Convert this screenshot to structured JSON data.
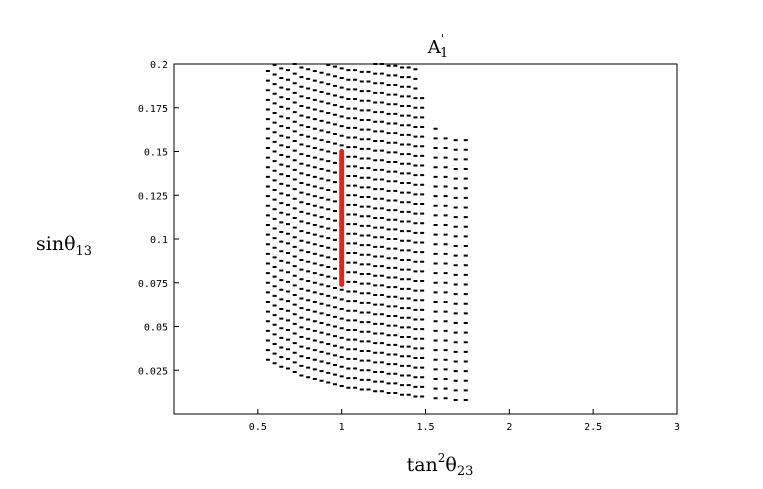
{
  "chart_data": {
    "type": "scatter",
    "title": "A1'",
    "title_parts": {
      "base": "A",
      "sub": "1",
      "sup": "'"
    },
    "xlabel": "tan²θ23",
    "xlabel_parts": {
      "fn": "tan",
      "sup": "2",
      "sym": "θ",
      "sub": "23"
    },
    "ylabel": "sinθ13",
    "ylabel_parts": {
      "fn": "sin",
      "sym": "θ",
      "sub": "13"
    },
    "xlim": [
      0,
      3
    ],
    "ylim": [
      0,
      0.2
    ],
    "x_ticks": [
      0.5,
      1,
      1.5,
      2,
      2.5,
      3
    ],
    "x_tick_labels": [
      "0.5",
      "1",
      "1.5",
      "2",
      "2.5",
      "3"
    ],
    "y_ticks": [
      0.025,
      0.05,
      0.075,
      0.1,
      0.125,
      0.15,
      0.175,
      0.2
    ],
    "y_tick_labels": [
      "0.025",
      "0.05",
      "0.075",
      "0.1",
      "0.125",
      "0.15",
      "0.175",
      "0.2"
    ],
    "grid": false,
    "series": [
      {
        "color": "#000000",
        "marker": "dot",
        "columns": [
          {
            "x": 0.56,
            "ymin": 0.031,
            "ymax": 0.2
          },
          {
            "x": 0.6,
            "ymin": 0.029,
            "ymax": 0.2
          },
          {
            "x": 0.64,
            "ymin": 0.027,
            "ymax": 0.2
          },
          {
            "x": 0.68,
            "ymin": 0.026,
            "ymax": 0.2
          },
          {
            "x": 0.72,
            "ymin": 0.024,
            "ymax": 0.2
          },
          {
            "x": 0.76,
            "ymin": 0.022,
            "ymax": 0.2
          },
          {
            "x": 0.8,
            "ymin": 0.021,
            "ymax": 0.2
          },
          {
            "x": 0.84,
            "ymin": 0.02,
            "ymax": 0.2
          },
          {
            "x": 0.88,
            "ymin": 0.019,
            "ymax": 0.2
          },
          {
            "x": 0.92,
            "ymin": 0.018,
            "ymax": 0.2
          },
          {
            "x": 0.96,
            "ymin": 0.017,
            "ymax": 0.2
          },
          {
            "x": 1.0,
            "ymin": 0.016,
            "ymax": 0.2
          },
          {
            "x": 1.04,
            "ymin": 0.015,
            "ymax": 0.2
          },
          {
            "x": 1.08,
            "ymin": 0.015,
            "ymax": 0.2
          },
          {
            "x": 1.12,
            "ymin": 0.014,
            "ymax": 0.2
          },
          {
            "x": 1.16,
            "ymin": 0.014,
            "ymax": 0.2
          },
          {
            "x": 1.2,
            "ymin": 0.013,
            "ymax": 0.2
          },
          {
            "x": 1.24,
            "ymin": 0.013,
            "ymax": 0.2
          },
          {
            "x": 1.28,
            "ymin": 0.012,
            "ymax": 0.2
          },
          {
            "x": 1.32,
            "ymin": 0.012,
            "ymax": 0.2
          },
          {
            "x": 1.36,
            "ymin": 0.011,
            "ymax": 0.2
          },
          {
            "x": 1.4,
            "ymin": 0.011,
            "ymax": 0.2
          },
          {
            "x": 1.44,
            "ymin": 0.01,
            "ymax": 0.2
          },
          {
            "x": 1.48,
            "ymin": 0.01,
            "ymax": 0.185
          },
          {
            "x": 1.56,
            "ymin": 0.009,
            "ymax": 0.164
          },
          {
            "x": 1.62,
            "ymin": 0.009,
            "ymax": 0.162
          },
          {
            "x": 1.68,
            "ymin": 0.008,
            "ymax": 0.161
          },
          {
            "x": 1.74,
            "ymin": 0.008,
            "ymax": 0.159
          }
        ],
        "row_step": 0.0055
      },
      {
        "color": "#e8231c",
        "marker": "line",
        "segment": {
          "x": 1.0,
          "ymin": 0.074,
          "ymax": 0.15
        }
      }
    ]
  }
}
